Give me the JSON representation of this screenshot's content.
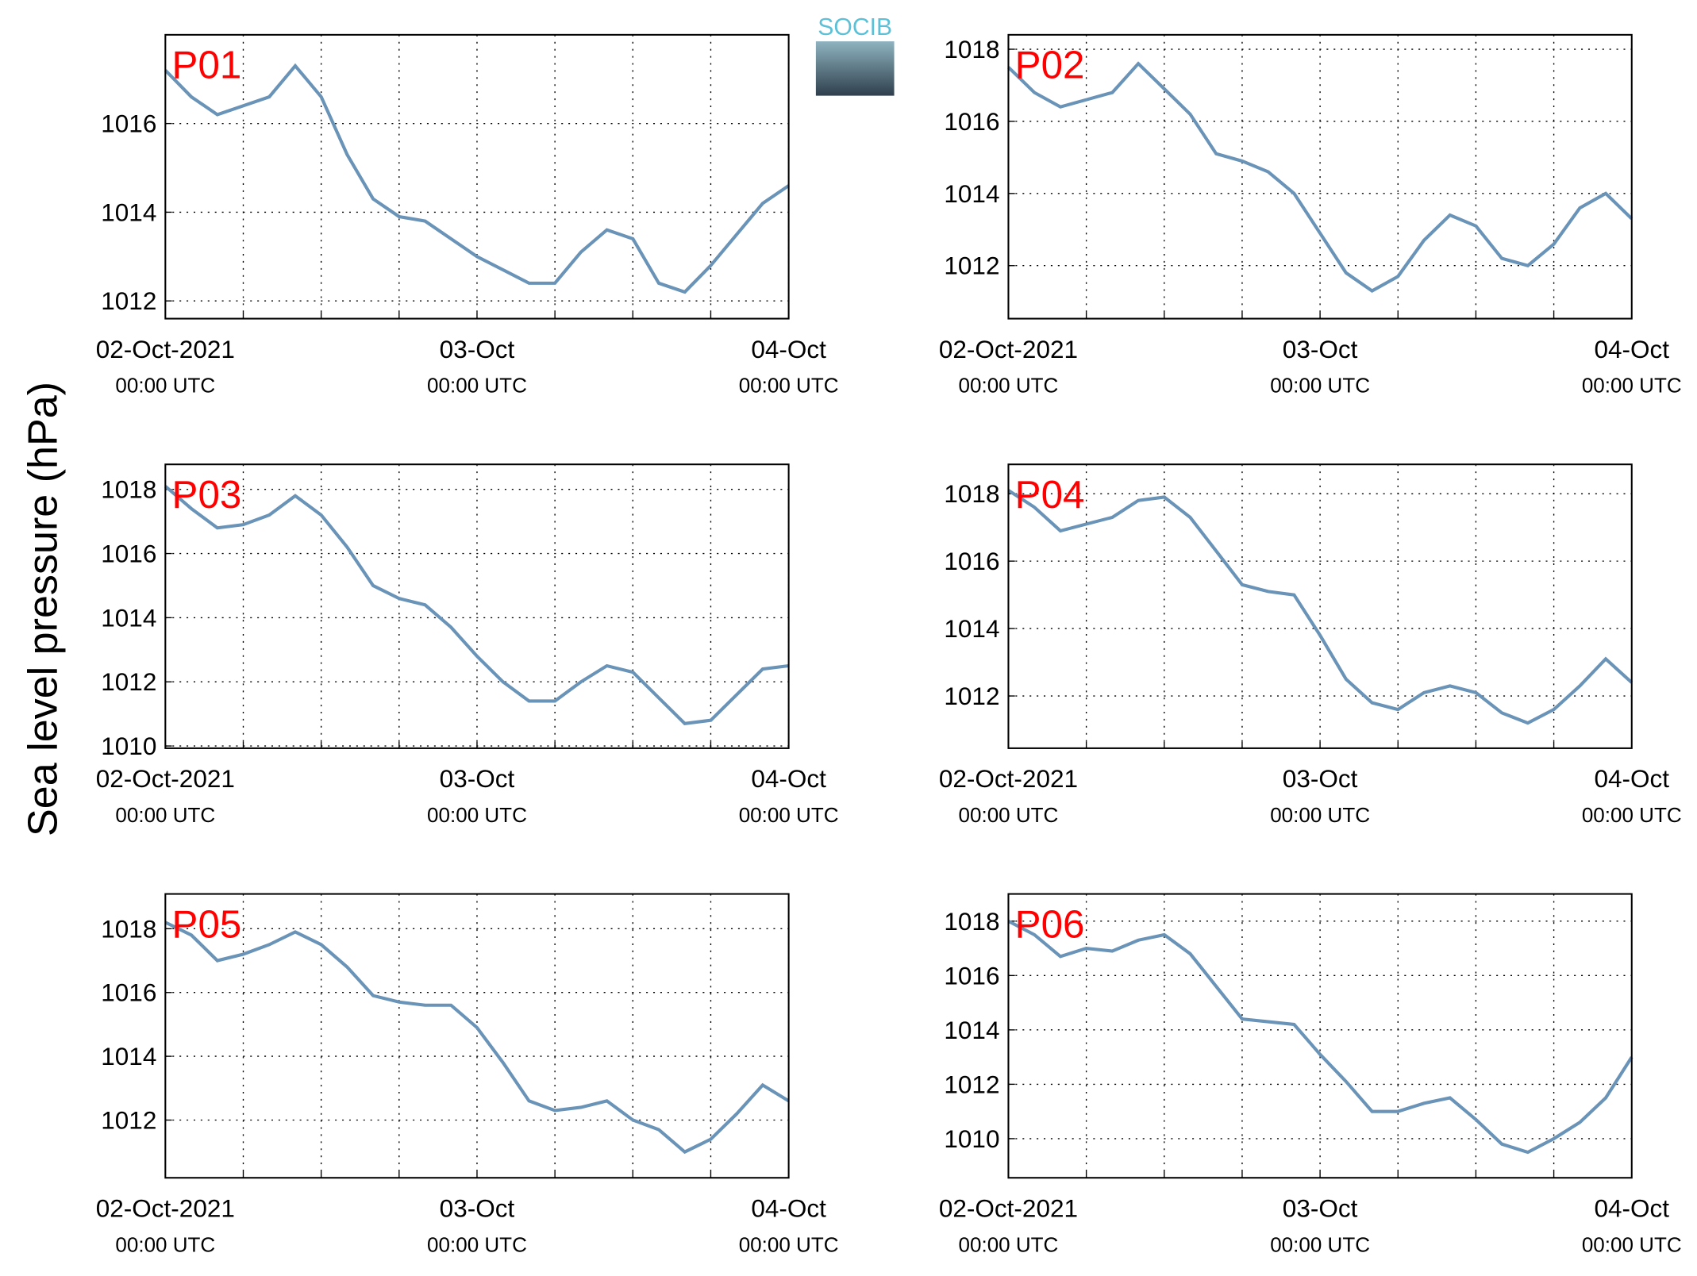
{
  "y_label": "Sea level pressure (hPa)",
  "logo": "SOCIB",
  "chart_data": [
    {
      "type": "line",
      "title": "P01",
      "color": "#6a93b8",
      "grid": true,
      "xlim": [
        0,
        48
      ],
      "ylim": [
        1011.6,
        1018
      ],
      "yticks": [
        1012,
        1014,
        1016
      ],
      "xticks": [
        {
          "value": 0,
          "label": "02-Oct-2021",
          "sublabel": "00:00 UTC"
        },
        {
          "value": 24,
          "label": "03-Oct",
          "sublabel": "00:00 UTC"
        },
        {
          "value": 48,
          "label": "04-Oct",
          "sublabel": "00:00 UTC"
        }
      ],
      "xminor": [
        6,
        12,
        18,
        30,
        36,
        42
      ],
      "x": [
        0,
        2,
        4,
        6,
        8,
        10,
        12,
        14,
        16,
        18,
        20,
        22,
        24,
        26,
        28,
        30,
        32,
        34,
        36,
        38,
        40,
        42,
        44,
        46,
        48
      ],
      "values": [
        1017.2,
        1016.6,
        1016.2,
        1016.4,
        1016.6,
        1017.3,
        1016.6,
        1015.3,
        1014.3,
        1013.9,
        1013.8,
        1013.4,
        1013.0,
        1012.7,
        1012.4,
        1012.4,
        1013.1,
        1013.6,
        1013.4,
        1012.4,
        1012.2,
        1012.8,
        1013.5,
        1014.2,
        1014.6
      ]
    },
    {
      "type": "line",
      "title": "P02",
      "color": "#6a93b8",
      "grid": true,
      "xlim": [
        0,
        48
      ],
      "ylim": [
        1010.53,
        1018.4
      ],
      "yticks": [
        1012,
        1014,
        1016,
        1018
      ],
      "xticks": [
        {
          "value": 0,
          "label": "02-Oct-2021",
          "sublabel": "00:00 UTC"
        },
        {
          "value": 24,
          "label": "03-Oct",
          "sublabel": "00:00 UTC"
        },
        {
          "value": 48,
          "label": "04-Oct",
          "sublabel": "00:00 UTC"
        }
      ],
      "xminor": [
        6,
        12,
        18,
        30,
        36,
        42
      ],
      "x": [
        0,
        2,
        4,
        6,
        8,
        10,
        12,
        14,
        16,
        18,
        20,
        22,
        24,
        26,
        28,
        30,
        32,
        34,
        36,
        38,
        40,
        42,
        44,
        46,
        48
      ],
      "values": [
        1017.5,
        1016.8,
        1016.4,
        1016.6,
        1016.8,
        1017.6,
        1016.9,
        1016.2,
        1015.1,
        1014.9,
        1014.6,
        1014.0,
        1012.9,
        1011.8,
        1011.3,
        1011.7,
        1012.7,
        1013.4,
        1013.1,
        1012.2,
        1012.0,
        1012.6,
        1013.6,
        1014.0,
        1013.3
      ]
    },
    {
      "type": "line",
      "title": "P03",
      "color": "#6a93b8",
      "grid": true,
      "xlim": [
        0,
        48
      ],
      "ylim": [
        1009.93,
        1018.78
      ],
      "yticks": [
        1010,
        1012,
        1014,
        1016,
        1018
      ],
      "xticks": [
        {
          "value": 0,
          "label": "02-Oct-2021",
          "sublabel": "00:00 UTC"
        },
        {
          "value": 24,
          "label": "03-Oct",
          "sublabel": "00:00 UTC"
        },
        {
          "value": 48,
          "label": "04-Oct",
          "sublabel": "00:00 UTC"
        }
      ],
      "xminor": [
        6,
        12,
        18,
        30,
        36,
        42
      ],
      "x": [
        0,
        2,
        4,
        6,
        8,
        10,
        12,
        14,
        16,
        18,
        20,
        22,
        24,
        26,
        28,
        30,
        32,
        34,
        36,
        38,
        40,
        42,
        44,
        46,
        48
      ],
      "values": [
        1018.1,
        1017.4,
        1016.8,
        1016.9,
        1017.2,
        1017.8,
        1017.2,
        1016.2,
        1015.0,
        1014.6,
        1014.4,
        1013.7,
        1012.8,
        1012.0,
        1011.4,
        1011.4,
        1012.0,
        1012.5,
        1012.3,
        1011.5,
        1010.7,
        1010.8,
        1011.6,
        1012.4,
        1012.5
      ]
    },
    {
      "type": "line",
      "title": "P04",
      "color": "#6a93b8",
      "grid": true,
      "xlim": [
        0,
        48
      ],
      "ylim": [
        1010.45,
        1018.87
      ],
      "yticks": [
        1012,
        1014,
        1016,
        1018
      ],
      "xticks": [
        {
          "value": 0,
          "label": "02-Oct-2021",
          "sublabel": "00:00 UTC"
        },
        {
          "value": 24,
          "label": "03-Oct",
          "sublabel": "00:00 UTC"
        },
        {
          "value": 48,
          "label": "04-Oct",
          "sublabel": "00:00 UTC"
        }
      ],
      "xminor": [
        6,
        12,
        18,
        30,
        36,
        42
      ],
      "x": [
        0,
        2,
        4,
        6,
        8,
        10,
        12,
        14,
        16,
        18,
        20,
        22,
        24,
        26,
        28,
        30,
        32,
        34,
        36,
        38,
        40,
        42,
        44,
        46,
        48
      ],
      "values": [
        1018.1,
        1017.6,
        1016.9,
        1017.1,
        1017.3,
        1017.8,
        1017.9,
        1017.3,
        1016.3,
        1015.3,
        1015.1,
        1015.0,
        1013.8,
        1012.5,
        1011.8,
        1011.6,
        1012.1,
        1012.3,
        1012.1,
        1011.5,
        1011.2,
        1011.6,
        1012.3,
        1013.1,
        1012.4
      ]
    },
    {
      "type": "line",
      "title": "P05",
      "color": "#6a93b8",
      "grid": true,
      "xlim": [
        0,
        48
      ],
      "ylim": [
        1010.19,
        1019.09
      ],
      "yticks": [
        1012,
        1014,
        1016,
        1018
      ],
      "xticks": [
        {
          "value": 0,
          "label": "02-Oct-2021",
          "sublabel": "00:00 UTC"
        },
        {
          "value": 24,
          "label": "03-Oct",
          "sublabel": "00:00 UTC"
        },
        {
          "value": 48,
          "label": "04-Oct",
          "sublabel": "00:00 UTC"
        }
      ],
      "xminor": [
        6,
        12,
        18,
        30,
        36,
        42
      ],
      "x": [
        0,
        2,
        4,
        6,
        8,
        10,
        12,
        14,
        16,
        18,
        20,
        22,
        24,
        26,
        28,
        30,
        32,
        34,
        36,
        38,
        40,
        42,
        44,
        46,
        48
      ],
      "values": [
        1018.2,
        1017.8,
        1017.0,
        1017.2,
        1017.5,
        1017.9,
        1017.5,
        1016.8,
        1015.9,
        1015.7,
        1015.6,
        1015.6,
        1014.9,
        1013.8,
        1012.6,
        1012.3,
        1012.4,
        1012.6,
        1012.0,
        1011.7,
        1011.0,
        1011.4,
        1012.2,
        1013.1,
        1012.6
      ]
    },
    {
      "type": "line",
      "title": "P06",
      "color": "#6a93b8",
      "grid": true,
      "xlim": [
        0,
        48
      ],
      "ylim": [
        1008.56,
        1019
      ],
      "yticks": [
        1010,
        1012,
        1014,
        1016,
        1018
      ],
      "xticks": [
        {
          "value": 0,
          "label": "02-Oct-2021",
          "sublabel": "00:00 UTC"
        },
        {
          "value": 24,
          "label": "03-Oct",
          "sublabel": "00:00 UTC"
        },
        {
          "value": 48,
          "label": "04-Oct",
          "sublabel": "00:00 UTC"
        }
      ],
      "xminor": [
        6,
        12,
        18,
        30,
        36,
        42
      ],
      "x": [
        0,
        2,
        4,
        6,
        8,
        10,
        12,
        14,
        16,
        18,
        20,
        22,
        24,
        26,
        28,
        30,
        32,
        34,
        36,
        38,
        40,
        42,
        44,
        46,
        48
      ],
      "values": [
        1018.0,
        1017.5,
        1016.7,
        1017.0,
        1016.9,
        1017.3,
        1017.5,
        1016.8,
        1015.6,
        1014.4,
        1014.3,
        1014.2,
        1013.1,
        1012.1,
        1011.0,
        1011.0,
        1011.3,
        1011.5,
        1010.7,
        1009.8,
        1009.5,
        1010.0,
        1010.6,
        1011.5,
        1013.0
      ]
    }
  ]
}
